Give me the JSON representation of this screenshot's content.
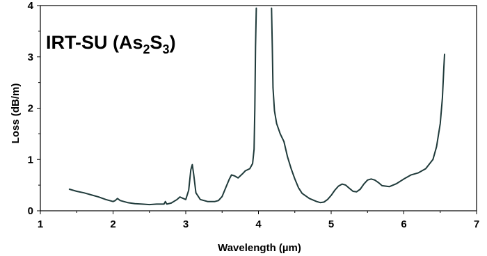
{
  "chart_data": {
    "type": "line",
    "title_parts": {
      "prefix": "IRT-SU (As",
      "sub1": "2",
      "mid": "S",
      "sub2": "3",
      "suffix": ")"
    },
    "xlabel": "Wavelength (µm)",
    "ylabel": "Loss (dB/m)",
    "xlim": [
      1,
      7
    ],
    "ylim": [
      0,
      4
    ],
    "xticks": [
      "1",
      "2",
      "3",
      "4",
      "5",
      "6",
      "7"
    ],
    "yticks": [
      "0",
      "1",
      "2",
      "3",
      "4"
    ],
    "grid": false,
    "line_color": "#1f3a3a",
    "series": [
      {
        "segments": [
          [
            [
              1.4,
              0.42
            ],
            [
              1.45,
              0.4
            ],
            [
              1.5,
              0.38
            ],
            [
              1.6,
              0.35
            ],
            [
              1.7,
              0.31
            ],
            [
              1.8,
              0.27
            ],
            [
              1.9,
              0.22
            ],
            [
              2.0,
              0.18
            ],
            [
              2.03,
              0.2
            ],
            [
              2.06,
              0.24
            ],
            [
              2.1,
              0.2
            ],
            [
              2.2,
              0.16
            ],
            [
              2.3,
              0.14
            ],
            [
              2.4,
              0.13
            ],
            [
              2.5,
              0.12
            ],
            [
              2.6,
              0.13
            ],
            [
              2.7,
              0.13
            ],
            [
              2.72,
              0.18
            ],
            [
              2.74,
              0.13
            ],
            [
              2.8,
              0.15
            ],
            [
              2.88,
              0.22
            ],
            [
              2.92,
              0.27
            ],
            [
              2.95,
              0.25
            ],
            [
              3.0,
              0.22
            ],
            [
              3.04,
              0.4
            ],
            [
              3.07,
              0.8
            ],
            [
              3.09,
              0.9
            ],
            [
              3.11,
              0.7
            ],
            [
              3.14,
              0.35
            ],
            [
              3.2,
              0.22
            ],
            [
              3.3,
              0.18
            ],
            [
              3.4,
              0.18
            ],
            [
              3.45,
              0.2
            ],
            [
              3.5,
              0.28
            ],
            [
              3.55,
              0.45
            ],
            [
              3.6,
              0.62
            ],
            [
              3.63,
              0.7
            ],
            [
              3.67,
              0.68
            ],
            [
              3.72,
              0.64
            ],
            [
              3.78,
              0.72
            ],
            [
              3.82,
              0.78
            ],
            [
              3.88,
              0.82
            ],
            [
              3.92,
              0.92
            ],
            [
              3.94,
              1.2
            ],
            [
              3.95,
              2.0
            ],
            [
              3.96,
              3.2
            ],
            [
              3.97,
              3.95
            ]
          ],
          [
            [
              4.18,
              3.95
            ],
            [
              4.19,
              3.2
            ],
            [
              4.2,
              2.4
            ],
            [
              4.22,
              1.95
            ],
            [
              4.25,
              1.7
            ],
            [
              4.3,
              1.5
            ],
            [
              4.35,
              1.35
            ],
            [
              4.4,
              1.05
            ],
            [
              4.45,
              0.82
            ],
            [
              4.5,
              0.62
            ],
            [
              4.55,
              0.45
            ],
            [
              4.6,
              0.34
            ],
            [
              4.7,
              0.24
            ],
            [
              4.8,
              0.18
            ],
            [
              4.85,
              0.16
            ],
            [
              4.9,
              0.17
            ],
            [
              4.95,
              0.22
            ],
            [
              5.0,
              0.3
            ],
            [
              5.05,
              0.4
            ],
            [
              5.1,
              0.48
            ],
            [
              5.15,
              0.52
            ],
            [
              5.2,
              0.5
            ],
            [
              5.25,
              0.44
            ],
            [
              5.3,
              0.38
            ],
            [
              5.35,
              0.37
            ],
            [
              5.4,
              0.42
            ],
            [
              5.45,
              0.52
            ],
            [
              5.5,
              0.6
            ],
            [
              5.55,
              0.62
            ],
            [
              5.6,
              0.6
            ],
            [
              5.65,
              0.55
            ],
            [
              5.7,
              0.49
            ],
            [
              5.8,
              0.47
            ],
            [
              5.9,
              0.53
            ],
            [
              6.0,
              0.62
            ],
            [
              6.1,
              0.7
            ],
            [
              6.2,
              0.74
            ],
            [
              6.3,
              0.82
            ],
            [
              6.4,
              1.0
            ],
            [
              6.45,
              1.25
            ],
            [
              6.5,
              1.7
            ],
            [
              6.53,
              2.2
            ],
            [
              6.55,
              2.8
            ],
            [
              6.56,
              3.05
            ]
          ]
        ]
      }
    ]
  }
}
